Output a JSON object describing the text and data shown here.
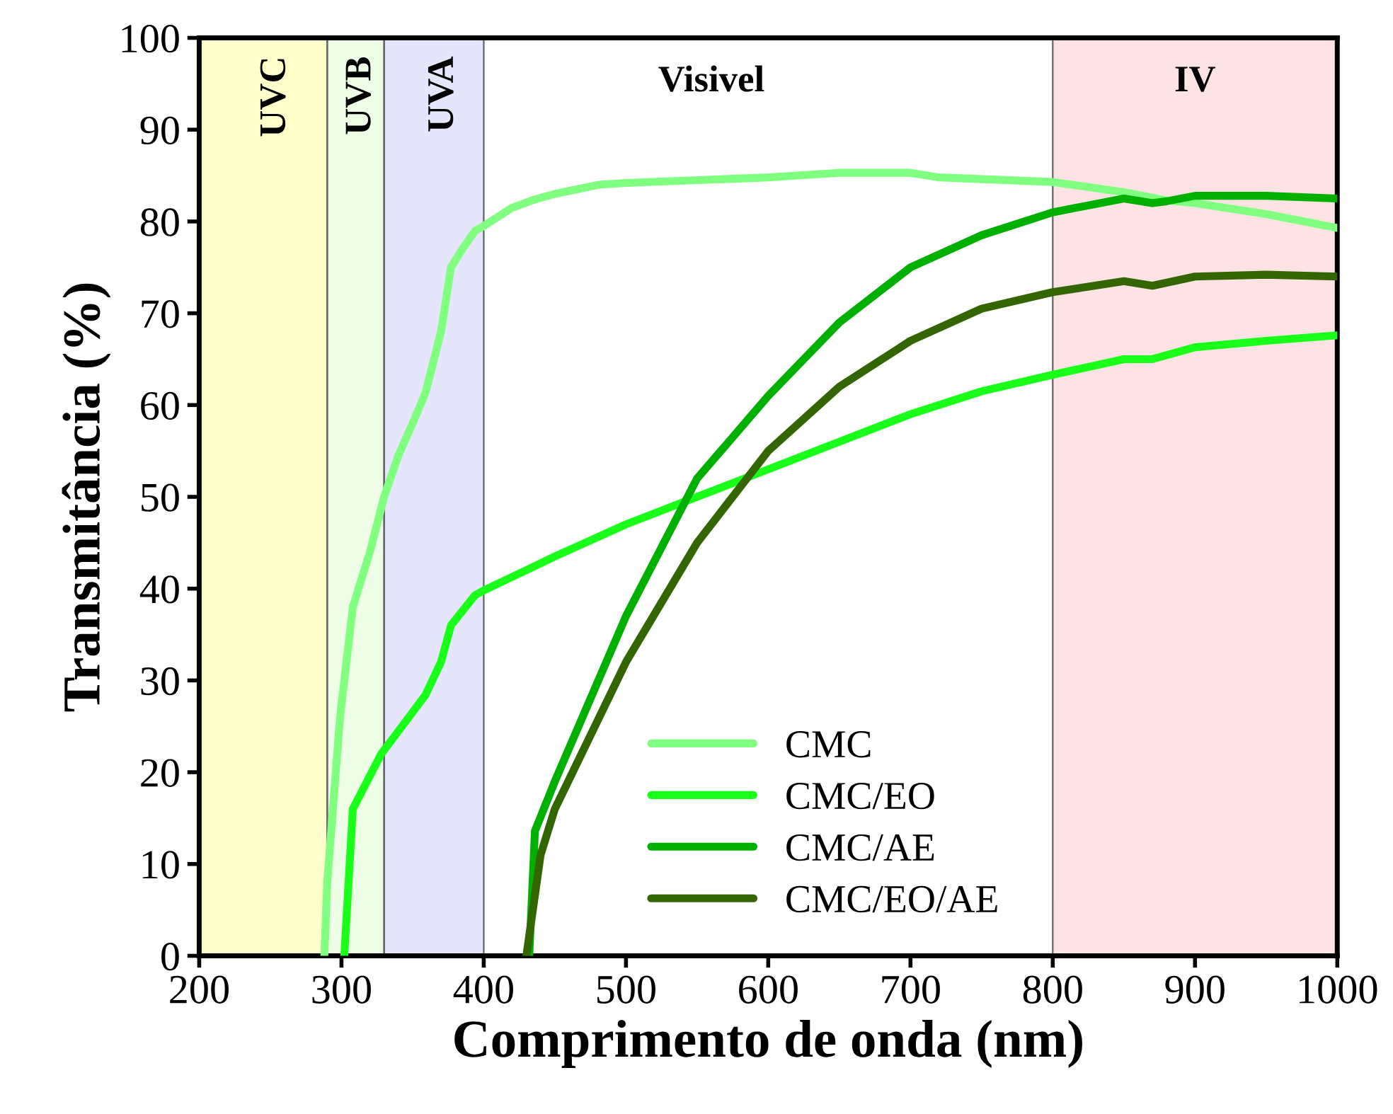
{
  "chart_data": {
    "type": "line",
    "xlabel": "Comprimento de onda (nm)",
    "ylabel": "Transmitância (%)",
    "xlim": [
      200,
      1000
    ],
    "xticks": [
      200,
      300,
      400,
      500,
      600,
      700,
      800,
      900,
      1000
    ],
    "ylim": [
      0,
      100
    ],
    "yticks": [
      0,
      10,
      20,
      30,
      40,
      50,
      60,
      70,
      80,
      90,
      100
    ],
    "annotations": [
      "Visivel"
    ],
    "grid": false,
    "legend": "bottom",
    "line_style": "solid",
    "marker": "none",
    "bands": [
      {
        "axis": "x",
        "from": 200,
        "to": 290,
        "label": "UVC",
        "color": "#ffffcc"
      },
      {
        "axis": "x",
        "from": 290,
        "to": 330,
        "label": "UVB",
        "color": "#eefde6"
      },
      {
        "axis": "x",
        "from": 330,
        "to": 400,
        "label": "UVA",
        "color": "#e5e5fc"
      },
      {
        "axis": "x",
        "from": 800,
        "to": 1000,
        "label": "IV",
        "color": "#fde3e3"
      }
    ],
    "series": [
      {
        "name": "CMC",
        "color": "#80ff80",
        "x": [
          288,
          290,
          299,
          308,
          320,
          330,
          340,
          350,
          359,
          370,
          377,
          385,
          394,
          400,
          420,
          436,
          450,
          481,
          500,
          600,
          650,
          700,
          720,
          800,
          850,
          880,
          900,
          950,
          1000
        ],
        "values": [
          0,
          8,
          26,
          38,
          44,
          50,
          54.5,
          58,
          61.3,
          68,
          75,
          77,
          79,
          79.5,
          81.5,
          82.4,
          83,
          84,
          84.2,
          84.8,
          85.3,
          85.3,
          84.8,
          84.3,
          83.2,
          82.3,
          82,
          80.8,
          79.3
        ]
      },
      {
        "name": "CMC/EO",
        "color": "#1aff1a",
        "x": [
          302,
          308,
          328,
          345,
          359,
          370,
          377,
          394,
          400,
          450,
          500,
          550,
          600,
          650,
          700,
          750,
          800,
          850,
          870,
          900,
          950,
          1000
        ],
        "values": [
          0,
          16,
          22,
          25.5,
          28.4,
          32,
          36,
          39.3,
          39.8,
          43.5,
          47,
          50,
          53,
          56,
          59,
          61.5,
          63.3,
          65,
          65,
          66.3,
          67,
          67.6
        ]
      },
      {
        "name": "CMC/AE",
        "color": "#00b000",
        "x": [
          432,
          436,
          450,
          500,
          550,
          600,
          650,
          700,
          750,
          800,
          850,
          870,
          880,
          900,
          950,
          1000
        ],
        "values": [
          0,
          13.6,
          19,
          37,
          52,
          61,
          69,
          75,
          78.5,
          81,
          82.5,
          82,
          82.2,
          82.8,
          82.8,
          82.5
        ]
      },
      {
        "name": "CMC/EO/AE",
        "color": "#336600",
        "x": [
          430,
          440,
          450,
          500,
          550,
          600,
          650,
          700,
          750,
          800,
          850,
          870,
          900,
          950,
          1000
        ],
        "values": [
          0,
          11,
          16,
          32,
          45,
          55,
          62,
          67,
          70.5,
          72.3,
          73.5,
          73,
          74,
          74.2,
          74
        ]
      }
    ]
  }
}
